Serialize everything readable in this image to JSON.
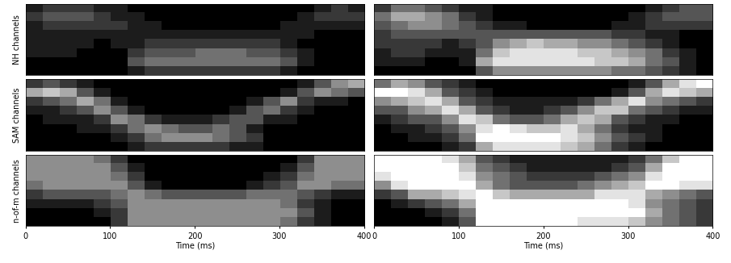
{
  "chart_data": [
    {
      "type": "heatmap",
      "ylabel": "NH channels",
      "xlim": [
        0,
        400
      ],
      "tick_labels": false,
      "cells": [
        [
          1,
          2,
          2,
          2,
          1,
          1,
          0,
          0,
          0,
          0,
          0,
          0,
          0,
          0,
          0,
          0,
          0,
          1,
          2,
          1
        ],
        [
          2,
          3,
          3,
          3,
          2,
          1,
          1,
          0,
          0,
          0,
          0,
          0,
          0,
          0,
          0,
          0,
          1,
          2,
          2,
          2
        ],
        [
          1,
          2,
          2,
          2,
          2,
          2,
          1,
          1,
          0,
          0,
          0,
          0,
          0,
          0,
          0,
          1,
          1,
          1,
          1,
          1
        ],
        [
          1,
          1,
          1,
          1,
          1,
          1,
          1,
          1,
          1,
          1,
          1,
          1,
          1,
          1,
          1,
          1,
          1,
          0,
          0,
          0
        ],
        [
          1,
          1,
          1,
          1,
          0,
          1,
          1,
          2,
          2,
          2,
          2,
          2,
          2,
          2,
          2,
          1,
          0,
          0,
          0,
          0
        ],
        [
          1,
          1,
          1,
          0,
          0,
          0,
          2,
          3,
          3,
          3,
          4,
          4,
          4,
          3,
          3,
          2,
          1,
          0,
          0,
          0
        ],
        [
          0,
          0,
          0,
          0,
          0,
          0,
          3,
          4,
          4,
          4,
          4,
          4,
          4,
          4,
          4,
          3,
          1,
          0,
          0,
          0
        ],
        [
          0,
          0,
          0,
          0,
          0,
          0,
          1,
          2,
          2,
          2,
          2,
          2,
          2,
          2,
          2,
          1,
          0,
          0,
          0,
          0
        ]
      ]
    },
    {
      "type": "heatmap",
      "xlim": [
        0,
        400
      ],
      "tick_labels": false,
      "cells": [
        [
          2,
          4,
          4,
          3,
          2,
          1,
          1,
          0,
          0,
          0,
          0,
          0,
          0,
          0,
          0,
          0,
          1,
          2,
          3,
          3
        ],
        [
          4,
          6,
          6,
          5,
          4,
          2,
          1,
          0,
          0,
          0,
          0,
          0,
          0,
          0,
          0,
          1,
          2,
          3,
          3,
          3
        ],
        [
          3,
          4,
          5,
          5,
          4,
          3,
          2,
          1,
          1,
          0,
          0,
          0,
          0,
          0,
          1,
          1,
          2,
          2,
          2,
          2
        ],
        [
          2,
          3,
          3,
          3,
          3,
          3,
          3,
          3,
          3,
          3,
          3,
          3,
          3,
          3,
          2,
          2,
          1,
          1,
          0,
          0
        ],
        [
          2,
          2,
          2,
          2,
          1,
          2,
          3,
          5,
          6,
          7,
          6,
          6,
          5,
          5,
          4,
          3,
          2,
          1,
          0,
          0
        ],
        [
          1,
          2,
          2,
          1,
          1,
          1,
          4,
          7,
          8,
          8,
          8,
          8,
          7,
          7,
          6,
          5,
          4,
          2,
          1,
          0
        ],
        [
          1,
          1,
          1,
          0,
          0,
          1,
          6,
          8,
          8,
          8,
          8,
          8,
          8,
          7,
          7,
          6,
          4,
          3,
          1,
          0
        ],
        [
          0,
          0,
          0,
          0,
          0,
          0,
          3,
          5,
          5,
          5,
          5,
          5,
          5,
          5,
          4,
          4,
          3,
          2,
          1,
          0
        ]
      ]
    },
    {
      "type": "heatmap",
      "ylabel": "SAM channels",
      "xlim": [
        0,
        400
      ],
      "tick_labels": false,
      "cells": [
        [
          2,
          3,
          2,
          1,
          0,
          0,
          0,
          0,
          0,
          0,
          0,
          0,
          0,
          0,
          0,
          0,
          1,
          3,
          5,
          6
        ],
        [
          6,
          7,
          6,
          3,
          1,
          0,
          0,
          0,
          0,
          0,
          0,
          0,
          0,
          0,
          0,
          1,
          3,
          5,
          4,
          3
        ],
        [
          2,
          3,
          4,
          6,
          4,
          1,
          0,
          0,
          0,
          0,
          0,
          0,
          0,
          1,
          3,
          5,
          2,
          1,
          1,
          0
        ],
        [
          1,
          1,
          2,
          3,
          5,
          3,
          1,
          0,
          0,
          0,
          0,
          0,
          1,
          3,
          4,
          2,
          1,
          0,
          0,
          0
        ],
        [
          0,
          1,
          1,
          1,
          2,
          5,
          4,
          2,
          1,
          1,
          1,
          2,
          3,
          3,
          1,
          1,
          0,
          0,
          0,
          0
        ],
        [
          0,
          0,
          0,
          1,
          1,
          2,
          4,
          5,
          4,
          3,
          3,
          4,
          3,
          1,
          0,
          0,
          0,
          0,
          0,
          0
        ],
        [
          0,
          0,
          0,
          0,
          0,
          1,
          2,
          4,
          5,
          5,
          5,
          4,
          3,
          2,
          0,
          0,
          0,
          0,
          0,
          0
        ],
        [
          0,
          0,
          0,
          0,
          0,
          0,
          1,
          2,
          2,
          2,
          2,
          2,
          1,
          1,
          0,
          0,
          0,
          0,
          0,
          0
        ]
      ]
    },
    {
      "type": "heatmap",
      "xlim": [
        0,
        400
      ],
      "tick_labels": false,
      "cells": [
        [
          4,
          6,
          5,
          3,
          2,
          1,
          0,
          0,
          0,
          0,
          0,
          0,
          0,
          0,
          0,
          1,
          3,
          6,
          8,
          9
        ],
        [
          9,
          9,
          8,
          6,
          3,
          2,
          1,
          0,
          0,
          0,
          0,
          0,
          0,
          0,
          1,
          3,
          6,
          8,
          7,
          6
        ],
        [
          5,
          6,
          7,
          8,
          6,
          3,
          2,
          1,
          1,
          1,
          1,
          1,
          2,
          4,
          6,
          8,
          5,
          4,
          3,
          2
        ],
        [
          3,
          3,
          5,
          6,
          8,
          6,
          3,
          2,
          1,
          1,
          2,
          3,
          5,
          7,
          7,
          4,
          3,
          2,
          1,
          1
        ],
        [
          1,
          2,
          3,
          3,
          5,
          8,
          7,
          4,
          3,
          3,
          4,
          6,
          7,
          6,
          3,
          2,
          1,
          1,
          0,
          0
        ],
        [
          0,
          1,
          1,
          2,
          3,
          5,
          8,
          9,
          8,
          7,
          7,
          8,
          6,
          4,
          2,
          1,
          1,
          0,
          0,
          0
        ],
        [
          0,
          0,
          1,
          1,
          2,
          4,
          9,
          9,
          9,
          9,
          9,
          8,
          7,
          5,
          3,
          2,
          1,
          0,
          0,
          0
        ],
        [
          0,
          0,
          0,
          0,
          1,
          2,
          6,
          8,
          8,
          8,
          8,
          7,
          6,
          4,
          2,
          1,
          0,
          0,
          0,
          0
        ]
      ]
    },
    {
      "type": "heatmap",
      "ylabel": "n-of-m channels",
      "xlabel": "Time (ms)",
      "xlim": [
        0,
        400
      ],
      "xticks": [
        0,
        100,
        200,
        300,
        400
      ],
      "tick_labels": "x",
      "cells": [
        [
          5,
          5,
          5,
          5,
          4,
          2,
          0,
          0,
          0,
          0,
          0,
          0,
          0,
          0,
          0,
          0,
          2,
          5,
          5,
          5
        ],
        [
          5,
          5,
          5,
          5,
          5,
          3,
          1,
          0,
          0,
          0,
          0,
          0,
          0,
          0,
          0,
          1,
          3,
          5,
          5,
          5
        ],
        [
          5,
          5,
          5,
          5,
          5,
          4,
          2,
          0,
          0,
          0,
          0,
          0,
          0,
          0,
          1,
          2,
          4,
          5,
          5,
          5
        ],
        [
          4,
          5,
          5,
          5,
          5,
          5,
          3,
          1,
          0,
          0,
          0,
          0,
          0,
          1,
          2,
          3,
          5,
          5,
          4,
          4
        ],
        [
          2,
          3,
          3,
          3,
          3,
          4,
          5,
          4,
          3,
          3,
          3,
          3,
          3,
          4,
          4,
          4,
          3,
          2,
          1,
          1
        ],
        [
          1,
          1,
          1,
          1,
          2,
          3,
          5,
          5,
          5,
          5,
          5,
          5,
          5,
          5,
          5,
          4,
          2,
          1,
          0,
          0
        ],
        [
          0,
          0,
          0,
          0,
          1,
          2,
          5,
          5,
          5,
          5,
          5,
          5,
          5,
          5,
          5,
          5,
          3,
          1,
          0,
          0
        ],
        [
          0,
          0,
          0,
          0,
          0,
          2,
          5,
          5,
          5,
          5,
          5,
          5,
          5,
          5,
          5,
          4,
          2,
          1,
          0,
          0
        ]
      ]
    },
    {
      "type": "heatmap",
      "xlabel": "Time (ms)",
      "xlim": [
        0,
        400
      ],
      "xticks": [
        0,
        100,
        200,
        300,
        400
      ],
      "tick_labels": "x",
      "cells": [
        [
          9,
          9,
          9,
          9,
          8,
          6,
          3,
          2,
          1,
          1,
          1,
          1,
          1,
          1,
          1,
          2,
          4,
          7,
          9,
          9
        ],
        [
          9,
          9,
          9,
          9,
          9,
          7,
          4,
          3,
          2,
          1,
          1,
          1,
          1,
          1,
          2,
          3,
          6,
          9,
          9,
          9
        ],
        [
          8,
          9,
          9,
          9,
          9,
          8,
          5,
          4,
          3,
          2,
          2,
          2,
          2,
          3,
          4,
          5,
          8,
          9,
          9,
          9
        ],
        [
          5,
          8,
          9,
          9,
          9,
          9,
          6,
          4,
          3,
          3,
          3,
          3,
          4,
          5,
          6,
          7,
          9,
          9,
          8,
          8
        ],
        [
          2,
          3,
          6,
          6,
          7,
          8,
          9,
          7,
          6,
          6,
          6,
          6,
          6,
          8,
          8,
          8,
          6,
          5,
          4,
          3
        ],
        [
          0,
          1,
          2,
          3,
          4,
          6,
          9,
          9,
          9,
          9,
          9,
          9,
          9,
          9,
          9,
          8,
          5,
          4,
          3,
          2
        ],
        [
          0,
          0,
          0,
          1,
          2,
          4,
          9,
          9,
          9,
          9,
          9,
          9,
          9,
          9,
          9,
          9,
          6,
          4,
          3,
          2
        ],
        [
          0,
          0,
          0,
          0,
          1,
          3,
          9,
          9,
          9,
          9,
          9,
          9,
          8,
          8,
          8,
          7,
          5,
          4,
          3,
          2
        ]
      ]
    }
  ]
}
